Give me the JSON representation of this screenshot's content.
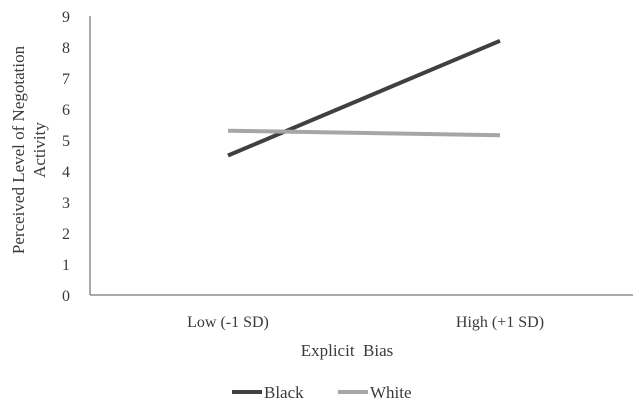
{
  "chart_data": {
    "type": "line",
    "categories": [
      "Low (-1 SD)",
      "High (+1 SD)"
    ],
    "series": [
      {
        "name": "Black",
        "values": [
          4.5,
          8.2
        ],
        "color": "#404040"
      },
      {
        "name": "White",
        "values": [
          5.3,
          5.15
        ],
        "color": "#a6a6a6"
      }
    ],
    "xlabel": "Explicit  Bias",
    "ylabel_lines": [
      "Perceived Level of Negotation",
      "Activity"
    ],
    "ylim": [
      0,
      9
    ],
    "yticks": [
      "0",
      "1",
      "2",
      "3",
      "4",
      "5",
      "6",
      "7",
      "8",
      "9"
    ],
    "grid": false,
    "legend_position": "bottom"
  }
}
